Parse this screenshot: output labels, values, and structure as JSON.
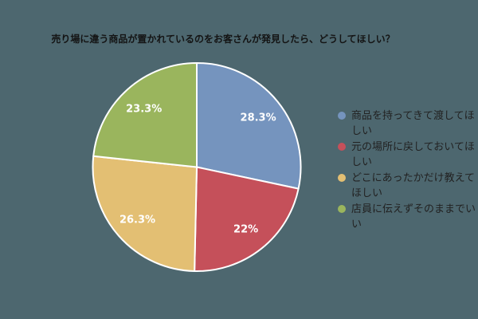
{
  "chart_data": {
    "type": "pie",
    "title": "売り場に違う商品が置かれているのをお客さんが発見したら、どうしてほしい？",
    "categories": [
      "商品を持ってきて渡してほしい",
      "元の場所に戻しておいてほしい",
      "どこにあったかだけ教えてほしい",
      "店員に伝えずそのままでいい"
    ],
    "values": [
      28.3,
      22,
      26.3,
      23.3
    ],
    "value_labels": [
      "28.3%",
      "22%",
      "26.3%",
      "23.3%"
    ],
    "slice_colors": [
      "#7594BE",
      "#C5505A",
      "#E3BF73",
      "#9AB55D"
    ],
    "start_angle": "top",
    "direction": "clockwise",
    "legend_position": "right",
    "background_color": "#4D676F",
    "slice_outline_color": "#FFFFFF",
    "value_label_color": "#FFFFFF",
    "title_color": "#141414",
    "legend_text_color": "#222222"
  }
}
